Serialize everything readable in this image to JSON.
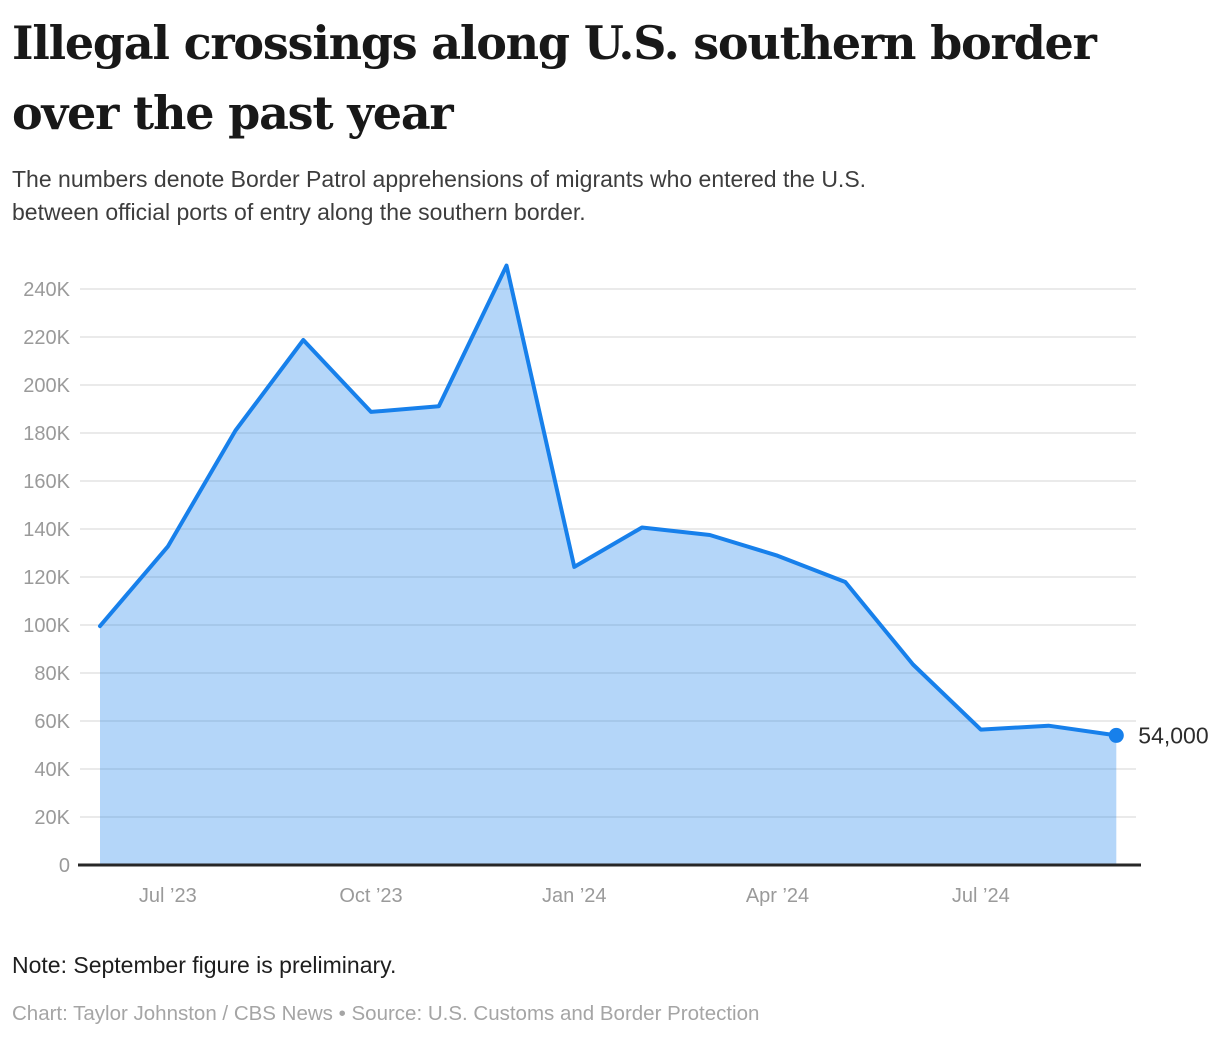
{
  "header": {
    "title_lines": [
      "Illegal crossings along U.S. southern border",
      "over the past year"
    ],
    "subtitle_lines": [
      "The numbers denote Border Patrol apprehensions of migrants who entered the U.S.",
      "between official ports of entry along the southern border."
    ]
  },
  "chart_data": {
    "type": "area",
    "title": "Illegal crossings along U.S. southern border over the past year",
    "subtitle": "The numbers denote Border Patrol apprehensions of migrants who entered the U.S. between official ports of entry along the southern border.",
    "x": [
      "Jun ’23",
      "Jul ’23",
      "Aug ’23",
      "Sep ’23",
      "Oct ’23",
      "Nov ’23",
      "Dec ’23",
      "Jan ’24",
      "Feb ’24",
      "Mar ’24",
      "Apr ’24",
      "May ’24",
      "Jun ’24",
      "Jul ’24",
      "Aug ’24",
      "Sep ’24"
    ],
    "values": [
      99545,
      132652,
      181059,
      218763,
      188778,
      191113,
      249735,
      124220,
      140638,
      137480,
      128895,
      117901,
      83536,
      56408,
      58038,
      54000
    ],
    "end_point_label": "54,000",
    "xtick_labels": [
      "Jul ’23",
      "Oct ’23",
      "Jan ’24",
      "Apr ’24",
      "Jul ’24"
    ],
    "xtick_indices": [
      1,
      4,
      7,
      10,
      13
    ],
    "ytick_labels": [
      "0",
      "20K",
      "40K",
      "60K",
      "80K",
      "100K",
      "120K",
      "140K",
      "160K",
      "180K",
      "200K",
      "220K",
      "240K"
    ],
    "ytick_step": 20000,
    "ylim": [
      0,
      250000
    ],
    "grid": "horizontal",
    "legend": "none",
    "xlabel": "",
    "ylabel": ""
  },
  "footer": {
    "note": "Note: September figure is preliminary.",
    "credit": "Chart: Taylor Johnston / CBS News • Source: U.S. Customs and Border Protection"
  },
  "colors": {
    "line": "#1780eb",
    "fill": "#1780eb",
    "fill_opacity": "0.32",
    "grid": "#e4e4e4",
    "axis": "#272727",
    "tick_text": "#9a9a9a",
    "end_label_text": "#2d2d2d",
    "title_text": "#181818",
    "background": "#ffffff"
  }
}
